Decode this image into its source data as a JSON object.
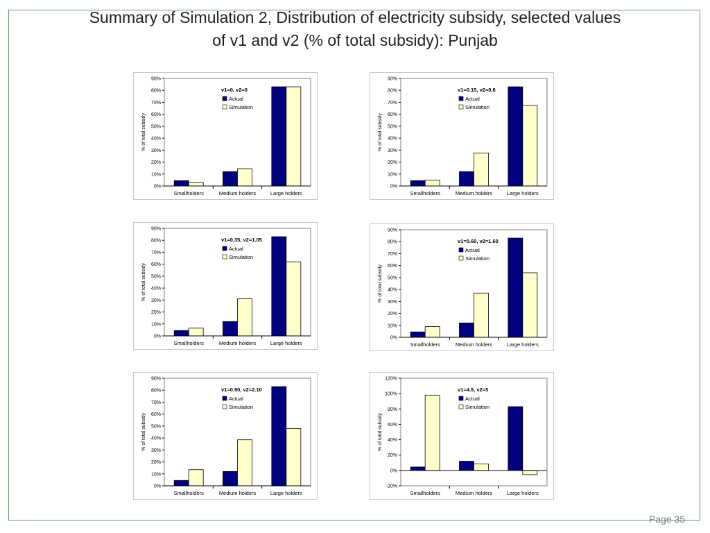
{
  "slide": {
    "title_line1": "Summary of Simulation 2, Distribution of electricity subsidy, selected values",
    "title_line2": "of v1 and v2 (% of total subsidy): Punjab",
    "page_label": "Page 35"
  },
  "colors": {
    "actual": "#000080",
    "simulation": "#ffffcc",
    "frame": "#5b9f6f"
  },
  "chart_data": [
    {
      "type": "bar",
      "title": "v1=0,  v2=0",
      "categories": [
        "Smallholders",
        "Medium holders",
        "Large holders"
      ],
      "ylabel": "% of total subsidy",
      "ylim": [
        0,
        90
      ],
      "ystep": 10,
      "legend_position": "top-center",
      "grid": false,
      "series": [
        {
          "name": "Actual",
          "values": [
            4.5,
            12,
            83
          ]
        },
        {
          "name": "Simulation",
          "values": [
            3,
            14.5,
            83
          ]
        }
      ]
    },
    {
      "type": "bar",
      "title": "v1=0.15, v2=0.8",
      "categories": [
        "Smallholders",
        "Medium holders",
        "Large holders"
      ],
      "ylabel": "% of total subsidy",
      "ylim": [
        0,
        90
      ],
      "ystep": 10,
      "legend_position": "top-center",
      "grid": false,
      "series": [
        {
          "name": "Actual",
          "values": [
            4.5,
            12,
            83
          ]
        },
        {
          "name": "Simulation",
          "values": [
            5,
            27.5,
            67.5
          ]
        }
      ]
    },
    {
      "type": "bar",
      "title": "v1=0.35, v2=1.05",
      "categories": [
        "Smallholders",
        "Medium holders",
        "Large holders"
      ],
      "ylabel": "% of total subsidy",
      "ylim": [
        0,
        90
      ],
      "ystep": 10,
      "legend_position": "top-center",
      "grid": false,
      "series": [
        {
          "name": "Actual",
          "values": [
            4.5,
            12,
            83
          ]
        },
        {
          "name": "Simulation",
          "values": [
            6.5,
            31,
            62
          ]
        }
      ]
    },
    {
      "type": "bar",
      "title": "v1=0.60, v2=1.60",
      "categories": [
        "Smallholders",
        "Medium holders",
        "Large holders"
      ],
      "ylabel": "% of total subsidy",
      "ylim": [
        0,
        90
      ],
      "ystep": 10,
      "legend_position": "top-center",
      "grid": false,
      "series": [
        {
          "name": "Actual",
          "values": [
            4.5,
            12,
            83
          ]
        },
        {
          "name": "Simulation",
          "values": [
            9,
            37,
            54
          ]
        }
      ]
    },
    {
      "type": "bar",
      "title": "v1=0.90, v2=2.10",
      "categories": [
        "Smallholders",
        "Medium holders",
        "Large holders"
      ],
      "ylabel": "% of total subsidy",
      "ylim": [
        0,
        90
      ],
      "ystep": 10,
      "legend_position": "top-center",
      "grid": false,
      "series": [
        {
          "name": "Actual",
          "values": [
            4.5,
            12,
            83
          ]
        },
        {
          "name": "Simulation",
          "values": [
            13.5,
            38.5,
            48
          ]
        }
      ]
    },
    {
      "type": "bar",
      "title": "v1=4.9, v2=5",
      "categories": [
        "Smallholders",
        "Medium holders",
        "Large holders"
      ],
      "ylabel": "% of total subsidy",
      "ylim": [
        -20,
        120
      ],
      "ystep": 20,
      "legend_position": "top-center",
      "grid": false,
      "series": [
        {
          "name": "Actual",
          "values": [
            4.5,
            12,
            83
          ]
        },
        {
          "name": "Simulation",
          "values": [
            98,
            8.5,
            -5.5
          ]
        }
      ]
    }
  ]
}
